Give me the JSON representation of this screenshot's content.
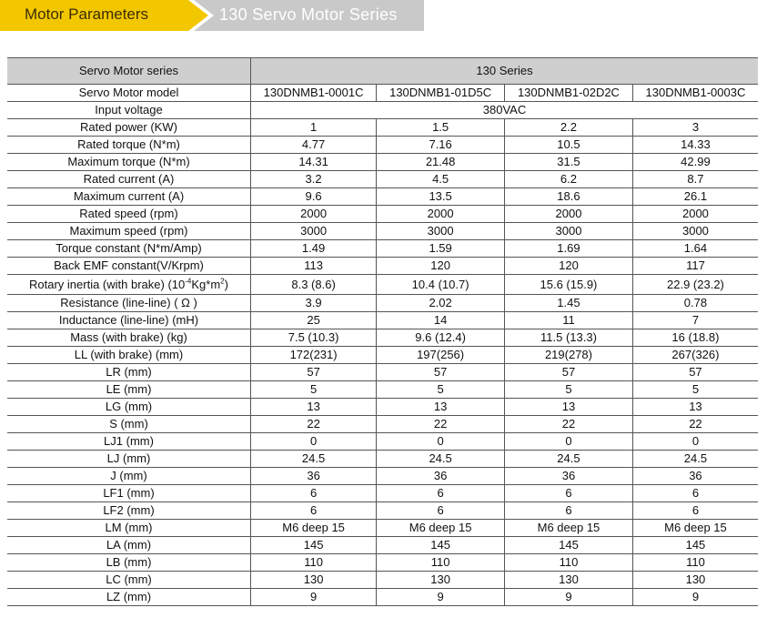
{
  "banner": {
    "section": "Motor Parameters",
    "series_title": "130 Servo Motor Series",
    "colors": {
      "section_bg": "#f3c700",
      "series_bg": "#c9c9c9"
    }
  },
  "table": {
    "header": {
      "label": "Servo Motor series",
      "value": "130 Series"
    },
    "rows": [
      {
        "label": "Servo Motor model",
        "values": [
          "130DNMB1-0001C",
          "130DNMB1-01D5C",
          "130DNMB1-02D2C",
          "130DNMB1-0003C"
        ]
      },
      {
        "label": "Input voltage",
        "span_value": "380VAC"
      },
      {
        "label": "Rated power (KW)",
        "values": [
          "1",
          "1.5",
          "2.2",
          "3"
        ]
      },
      {
        "label": "Rated torque (N*m)",
        "values": [
          "4.77",
          "7.16",
          "10.5",
          "14.33"
        ]
      },
      {
        "label": "Maximum torque (N*m)",
        "values": [
          "14.31",
          "21.48",
          "31.5",
          "42.99"
        ]
      },
      {
        "label": "Rated current (A)",
        "values": [
          "3.2",
          "4.5",
          "6.2",
          "8.7"
        ]
      },
      {
        "label": "Maximum current (A)",
        "values": [
          "9.6",
          "13.5",
          "18.6",
          "26.1"
        ]
      },
      {
        "label": "Rated speed (rpm)",
        "values": [
          "2000",
          "2000",
          "2000",
          "2000"
        ]
      },
      {
        "label": "Maximum speed (rpm)",
        "values": [
          "3000",
          "3000",
          "3000",
          "3000"
        ]
      },
      {
        "label": "Torque constant (N*m/Amp)",
        "values": [
          "1.49",
          "1.59",
          "1.69",
          "1.64"
        ]
      },
      {
        "label": "Back EMF constant(V/Krpm)",
        "values": [
          "113",
          "120",
          "120",
          "117"
        ]
      },
      {
        "label_parts": [
          "Rotary inertia (with brake) (10",
          "-4",
          "Kg*m",
          "2",
          ")"
        ],
        "values": [
          "8.3 (8.6)",
          "10.4 (10.7)",
          "15.6 (15.9)",
          "22.9 (23.2)"
        ]
      },
      {
        "label": "Resistance (line-line) ( Ω )",
        "values": [
          "3.9",
          "2.02",
          "1.45",
          "0.78"
        ]
      },
      {
        "label": "Inductance (line-line) (mH)",
        "values": [
          "25",
          "14",
          "11",
          "7"
        ]
      },
      {
        "label": "Mass (with brake) (kg)",
        "values": [
          "7.5 (10.3)",
          "9.6 (12.4)",
          "11.5 (13.3)",
          "16 (18.8)"
        ]
      },
      {
        "label": "LL (with brake) (mm)",
        "values": [
          "172(231)",
          "197(256)",
          "219(278)",
          "267(326)"
        ]
      },
      {
        "label": "LR (mm)",
        "values": [
          "57",
          "57",
          "57",
          "57"
        ]
      },
      {
        "label": "LE (mm)",
        "values": [
          "5",
          "5",
          "5",
          "5"
        ]
      },
      {
        "label": "LG (mm)",
        "values": [
          "13",
          "13",
          "13",
          "13"
        ]
      },
      {
        "label": "S (mm)",
        "values": [
          "22",
          "22",
          "22",
          "22"
        ]
      },
      {
        "label": "LJ1 (mm)",
        "values": [
          "0",
          "0",
          "0",
          "0"
        ]
      },
      {
        "label": "LJ (mm)",
        "values": [
          "24.5",
          "24.5",
          "24.5",
          "24.5"
        ]
      },
      {
        "label": "J (mm)",
        "values": [
          "36",
          "36",
          "36",
          "36"
        ]
      },
      {
        "label": "LF1 (mm)",
        "values": [
          "6",
          "6",
          "6",
          "6"
        ]
      },
      {
        "label": "LF2 (mm)",
        "values": [
          "6",
          "6",
          "6",
          "6"
        ]
      },
      {
        "label": "LM (mm)",
        "values": [
          "M6 deep 15",
          "M6 deep 15",
          "M6 deep 15",
          "M6 deep 15"
        ]
      },
      {
        "label": "LA (mm)",
        "values": [
          "145",
          "145",
          "145",
          "145"
        ]
      },
      {
        "label": "LB (mm)",
        "values": [
          "110",
          "110",
          "110",
          "110"
        ]
      },
      {
        "label": "LC (mm)",
        "values": [
          "130",
          "130",
          "130",
          "130"
        ]
      },
      {
        "label": "LZ (mm)",
        "values": [
          "9",
          "9",
          "9",
          "9"
        ]
      }
    ]
  }
}
